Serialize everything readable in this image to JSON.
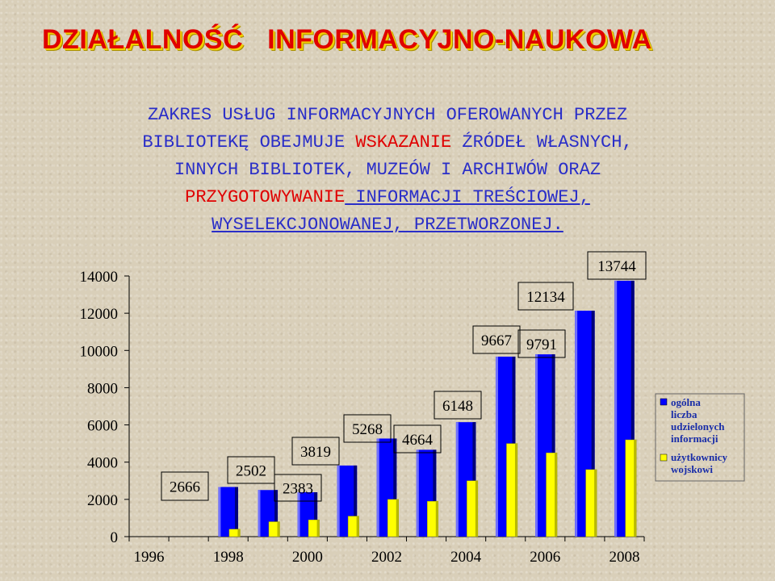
{
  "heading": {
    "part1": "DZIAŁALNOŚĆ",
    "part2": "INFORMACYJNO-NAUKOWA"
  },
  "intro": {
    "l1": "ZAKRES USŁUG INFORMACYJNYCH OFEROWANYCH PRZEZ",
    "l2a": "BIBLIOTEKĘ OBEJMUJE ",
    "l2b": "WSKAZANIE",
    "l2c": " ŹRÓDEŁ WŁASNYCH,",
    "l3": "INNYCH BIBLIOTEK, MUZEÓW I ARCHIWÓW ORAZ",
    "l4a": "PRZYGOTOWYWANIE",
    "l4b": " INFORMACJI TREŚCIOWEJ,",
    "l5": "WYSELEKCJONOWANEJ, PRZETWORZONEJ."
  },
  "chart_data": {
    "type": "bar",
    "categories": [
      "1996",
      "1997",
      "1998",
      "1999",
      "2000",
      "2001",
      "2002",
      "2003",
      "2004",
      "2005",
      "2006",
      "2007",
      "2008"
    ],
    "x_tick_labels": [
      "1996",
      "1998",
      "2000",
      "2002",
      "2004",
      "2006",
      "2008"
    ],
    "ylim": [
      0,
      14000
    ],
    "y_ticks": [
      0,
      2000,
      4000,
      6000,
      8000,
      10000,
      12000,
      14000
    ],
    "legend_position": "right",
    "series": [
      {
        "name": "ogólna liczba udzielonych informacji",
        "color": "#0000ff",
        "values": [
          null,
          null,
          2666,
          2502,
          2383,
          3819,
          5268,
          4664,
          6148,
          9667,
          9791,
          12134,
          13744
        ]
      },
      {
        "name": "użytkownicy wojskowi",
        "color": "#ffff00",
        "values": [
          null,
          null,
          400,
          800,
          900,
          1100,
          2000,
          1900,
          3000,
          5000,
          4500,
          3600,
          5200
        ]
      }
    ],
    "data_labels": [
      "2666",
      "2502",
      "2383",
      "3819",
      "5268",
      "4664",
      "6148",
      "9667",
      "9791",
      "12134",
      "13744"
    ]
  }
}
